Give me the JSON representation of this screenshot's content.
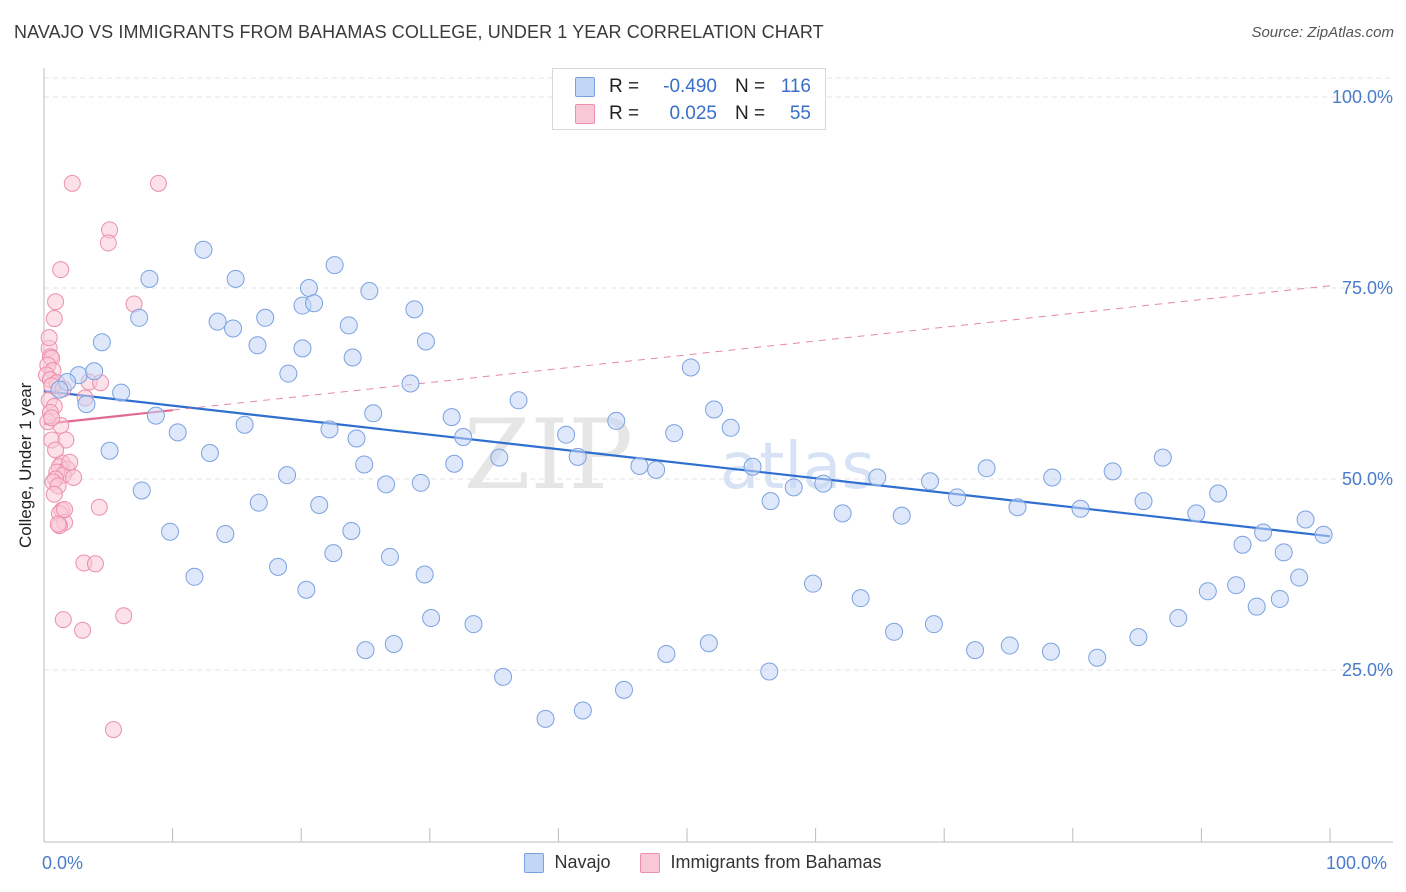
{
  "title": "NAVAJO VS IMMIGRANTS FROM BAHAMAS COLLEGE, UNDER 1 YEAR CORRELATION CHART",
  "source": "Source: ZipAtlas.com",
  "watermark": {
    "zip": "ZIP",
    "atlas": "atlas"
  },
  "legend_box": {
    "rows": [
      {
        "r_label": "R =",
        "r_value": "-0.490",
        "n_label": "N =",
        "n_value": "116"
      },
      {
        "r_label": "R =",
        "r_value": "0.025",
        "n_label": "N =",
        "n_value": "55"
      }
    ]
  },
  "colors": {
    "navajo_fill": "#c2d6f5",
    "navajo_stroke": "#7ba2e0",
    "navajo_line": "#2f6fd0",
    "bahamas_fill": "#f9c8d6",
    "bahamas_stroke": "#ec8fac",
    "bahamas_line": "#e06a92",
    "grid": "#e3e3e3",
    "tick_text": "#4a7cc9"
  },
  "chart_data": {
    "type": "scatter",
    "title": "NAVAJO VS IMMIGRANTS FROM BAHAMAS COLLEGE, UNDER 1 YEAR CORRELATION CHART",
    "xlabel": "",
    "ylabel": "College, Under 1 year",
    "x_tick_labels": [
      "0.0%",
      "100.0%"
    ],
    "y_tick_labels": [
      "100.0%",
      "75.0%",
      "50.0%",
      "25.0%"
    ],
    "y_ticks": [
      100,
      75,
      50,
      25
    ],
    "xlim": [
      0,
      100
    ],
    "ylim": [
      0,
      100
    ],
    "grid": true,
    "legend": "bottom",
    "series": [
      {
        "name": "Navajo",
        "R": -0.49,
        "N": 116,
        "trend": {
          "x": [
            0,
            100
          ],
          "y": [
            61.5,
            42.5
          ],
          "style": "solid"
        },
        "points": [
          [
            4.5,
            67.9
          ],
          [
            8.2,
            76.2
          ],
          [
            7.4,
            71.1
          ],
          [
            12.4,
            80.0
          ],
          [
            14.9,
            76.2
          ],
          [
            13.5,
            70.6
          ],
          [
            17.2,
            71.1
          ],
          [
            20.1,
            72.7
          ],
          [
            20.6,
            75.0
          ],
          [
            22.6,
            78.0
          ],
          [
            23.7,
            70.1
          ],
          [
            14.7,
            69.7
          ],
          [
            16.6,
            67.5
          ],
          [
            20.1,
            67.1
          ],
          [
            21.0,
            73.0
          ],
          [
            24.0,
            65.9
          ],
          [
            25.3,
            74.6
          ],
          [
            28.8,
            72.2
          ],
          [
            29.7,
            68.0
          ],
          [
            28.5,
            62.5
          ],
          [
            22.2,
            56.5
          ],
          [
            24.9,
            51.9
          ],
          [
            19.0,
            63.8
          ],
          [
            25.6,
            58.6
          ],
          [
            24.3,
            55.3
          ],
          [
            26.6,
            49.3
          ],
          [
            29.3,
            49.5
          ],
          [
            31.7,
            58.1
          ],
          [
            32.6,
            55.5
          ],
          [
            31.9,
            52.0
          ],
          [
            35.4,
            52.8
          ],
          [
            36.9,
            60.3
          ],
          [
            40.6,
            55.8
          ],
          [
            41.5,
            52.9
          ],
          [
            44.5,
            57.6
          ],
          [
            46.3,
            51.7
          ],
          [
            47.6,
            51.2
          ],
          [
            49.0,
            56.0
          ],
          [
            50.3,
            64.6
          ],
          [
            52.1,
            59.1
          ],
          [
            53.4,
            56.7
          ],
          [
            55.1,
            51.6
          ],
          [
            56.5,
            47.1
          ],
          [
            58.3,
            48.9
          ],
          [
            60.6,
            49.4
          ],
          [
            62.1,
            45.5
          ],
          [
            64.8,
            50.2
          ],
          [
            66.7,
            45.2
          ],
          [
            68.9,
            49.7
          ],
          [
            71.0,
            47.6
          ],
          [
            73.3,
            51.4
          ],
          [
            75.7,
            46.3
          ],
          [
            78.4,
            50.2
          ],
          [
            80.6,
            46.1
          ],
          [
            83.1,
            51.0
          ],
          [
            85.5,
            47.1
          ],
          [
            87.0,
            52.8
          ],
          [
            89.6,
            45.5
          ],
          [
            91.3,
            48.1
          ],
          [
            93.2,
            41.4
          ],
          [
            94.8,
            43.0
          ],
          [
            96.4,
            40.4
          ],
          [
            98.1,
            44.7
          ],
          [
            99.5,
            42.7
          ],
          [
            97.6,
            37.1
          ],
          [
            96.1,
            34.3
          ],
          [
            94.3,
            33.3
          ],
          [
            92.7,
            36.1
          ],
          [
            90.5,
            35.3
          ],
          [
            88.2,
            31.8
          ],
          [
            85.1,
            29.3
          ],
          [
            81.9,
            26.6
          ],
          [
            78.3,
            27.4
          ],
          [
            75.1,
            28.2
          ],
          [
            72.4,
            27.6
          ],
          [
            69.2,
            31.0
          ],
          [
            66.1,
            30.0
          ],
          [
            63.5,
            34.4
          ],
          [
            59.8,
            36.3
          ],
          [
            56.4,
            24.8
          ],
          [
            51.7,
            28.5
          ],
          [
            48.4,
            27.1
          ],
          [
            45.1,
            22.4
          ],
          [
            41.9,
            19.7
          ],
          [
            39.0,
            18.6
          ],
          [
            35.7,
            24.1
          ],
          [
            33.4,
            31.0
          ],
          [
            30.1,
            31.8
          ],
          [
            27.2,
            28.4
          ],
          [
            25.0,
            27.6
          ],
          [
            22.5,
            40.3
          ],
          [
            20.4,
            35.5
          ],
          [
            18.2,
            38.5
          ],
          [
            16.7,
            46.9
          ],
          [
            14.1,
            42.8
          ],
          [
            11.7,
            37.2
          ],
          [
            9.8,
            43.1
          ],
          [
            7.6,
            48.5
          ],
          [
            5.1,
            53.7
          ],
          [
            3.3,
            59.8
          ],
          [
            2.7,
            63.6
          ],
          [
            1.8,
            62.7
          ],
          [
            1.2,
            61.7
          ],
          [
            3.9,
            64.1
          ],
          [
            6.0,
            61.3
          ],
          [
            8.7,
            58.3
          ],
          [
            10.4,
            56.1
          ],
          [
            12.9,
            53.4
          ],
          [
            15.6,
            57.1
          ],
          [
            18.9,
            50.5
          ],
          [
            21.4,
            46.6
          ],
          [
            23.9,
            43.2
          ],
          [
            26.9,
            39.8
          ],
          [
            29.6,
            37.5
          ]
        ]
      },
      {
        "name": "Immigrants from Bahamas",
        "R": 0.025,
        "N": 55,
        "trend": {
          "x": [
            0,
            100
          ],
          "y": [
            57.2,
            75.3
          ],
          "style": "dashed",
          "solid_until_x": 10.0
        },
        "points": [
          [
            2.2,
            88.7
          ],
          [
            8.9,
            88.7
          ],
          [
            5.1,
            82.6
          ],
          [
            5.0,
            80.9
          ],
          [
            1.3,
            77.4
          ],
          [
            0.9,
            73.2
          ],
          [
            7.0,
            72.9
          ],
          [
            0.8,
            71.0
          ],
          [
            0.4,
            67.1
          ],
          [
            0.5,
            66.0
          ],
          [
            0.6,
            65.8
          ],
          [
            0.3,
            64.9
          ],
          [
            0.7,
            64.2
          ],
          [
            0.2,
            63.6
          ],
          [
            0.5,
            63.0
          ],
          [
            1.0,
            62.6
          ],
          [
            0.6,
            62.2
          ],
          [
            1.5,
            61.8
          ],
          [
            3.5,
            62.7
          ],
          [
            4.4,
            62.6
          ],
          [
            0.4,
            60.3
          ],
          [
            0.8,
            59.5
          ],
          [
            0.5,
            58.7
          ],
          [
            0.3,
            57.5
          ],
          [
            1.3,
            57.0
          ],
          [
            0.6,
            55.1
          ],
          [
            1.7,
            55.1
          ],
          [
            1.4,
            52.1
          ],
          [
            1.2,
            51.6
          ],
          [
            1.8,
            51.3
          ],
          [
            1.0,
            50.9
          ],
          [
            1.5,
            50.5
          ],
          [
            2.3,
            50.2
          ],
          [
            0.9,
            50.0
          ],
          [
            0.7,
            49.6
          ],
          [
            1.1,
            49.1
          ],
          [
            0.8,
            48.0
          ],
          [
            1.4,
            45.9
          ],
          [
            1.2,
            45.5
          ],
          [
            4.3,
            46.3
          ],
          [
            1.6,
            44.3
          ],
          [
            1.2,
            43.9
          ],
          [
            3.1,
            39.0
          ],
          [
            4.0,
            38.9
          ],
          [
            1.5,
            31.6
          ],
          [
            6.2,
            32.1
          ],
          [
            3.0,
            30.2
          ],
          [
            5.4,
            17.2
          ],
          [
            1.6,
            46.0
          ],
          [
            0.9,
            53.8
          ],
          [
            2.0,
            52.2
          ],
          [
            0.4,
            68.5
          ],
          [
            3.2,
            60.6
          ],
          [
            1.1,
            44.1
          ],
          [
            0.6,
            58.0
          ]
        ]
      }
    ]
  }
}
